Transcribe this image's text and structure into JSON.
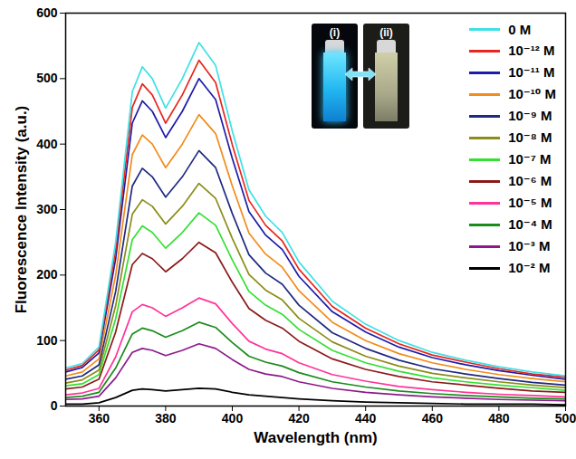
{
  "chart_data": {
    "type": "line",
    "x_label": "Wavelength (nm)",
    "y_label": "Fluorescence Intensity (a.u.)",
    "xlim": [
      350,
      500
    ],
    "xticks": [
      360,
      380,
      400,
      420,
      440,
      460,
      480,
      500
    ],
    "ylim": [
      0,
      600
    ],
    "yticks": [
      0,
      100,
      200,
      300,
      400,
      500,
      600
    ],
    "legend": "upper right",
    "annotations": [
      "(i)",
      "(ii)"
    ],
    "x": [
      350,
      355,
      360,
      365,
      370,
      373,
      376,
      380,
      385,
      390,
      395,
      400,
      405,
      410,
      415,
      420,
      430,
      440,
      450,
      460,
      470,
      480,
      490,
      500
    ],
    "series": [
      {
        "name": "0 M",
        "color": "#3fe0e6",
        "values": [
          58,
          65,
          90,
          250,
          480,
          518,
          500,
          455,
          500,
          555,
          520,
          420,
          330,
          290,
          265,
          220,
          160,
          125,
          100,
          82,
          70,
          60,
          52,
          46
        ]
      },
      {
        "name": "10⁻¹² M",
        "color": "#e8261f",
        "values": [
          55,
          62,
          86,
          238,
          456,
          492,
          475,
          432,
          475,
          528,
          494,
          399,
          314,
          276,
          252,
          209,
          152,
          119,
          95,
          78,
          67,
          57,
          49,
          44
        ]
      },
      {
        "name": "10⁻¹¹ M",
        "color": "#1c1ca8",
        "values": [
          52,
          59,
          81,
          225,
          432,
          466,
          450,
          410,
          450,
          500,
          468,
          378,
          297,
          261,
          239,
          198,
          144,
          113,
          90,
          74,
          63,
          54,
          47,
          41
        ]
      },
      {
        "name": "10⁻¹⁰ M",
        "color": "#f28c1a",
        "values": [
          46,
          52,
          72,
          200,
          384,
          414,
          400,
          364,
          400,
          445,
          416,
          336,
          264,
          232,
          212,
          176,
          128,
          100,
          80,
          66,
          56,
          48,
          42,
          37
        ]
      },
      {
        "name": "10⁻⁹ M",
        "color": "#1f2a80",
        "values": [
          41,
          46,
          63,
          175,
          336,
          363,
          350,
          319,
          350,
          390,
          364,
          294,
          231,
          203,
          186,
          154,
          112,
          88,
          70,
          57,
          49,
          42,
          36,
          32
        ]
      },
      {
        "name": "10⁻⁸ M",
        "color": "#8c8c1a",
        "values": [
          35,
          40,
          55,
          153,
          293,
          315,
          305,
          278,
          305,
          340,
          317,
          256,
          201,
          177,
          162,
          134,
          98,
          76,
          61,
          50,
          43,
          37,
          32,
          28
        ]
      },
      {
        "name": "10⁻⁷ M",
        "color": "#33e033",
        "values": [
          31,
          34,
          48,
          133,
          254,
          275,
          265,
          241,
          265,
          295,
          276,
          223,
          175,
          154,
          140,
          117,
          85,
          66,
          53,
          43,
          37,
          32,
          28,
          24
        ]
      },
      {
        "name": "10⁻⁶ M",
        "color": "#8b1a1a",
        "values": [
          26,
          29,
          41,
          113,
          216,
          233,
          225,
          205,
          225,
          250,
          234,
          189,
          149,
          131,
          119,
          99,
          72,
          56,
          45,
          37,
          32,
          27,
          23,
          21
        ]
      },
      {
        "name": "10⁻⁵ M",
        "color": "#ff3399",
        "values": [
          17,
          20,
          27,
          75,
          144,
          155,
          150,
          137,
          150,
          165,
          156,
          126,
          99,
          87,
          80,
          66,
          48,
          38,
          30,
          25,
          21,
          18,
          16,
          14
        ]
      },
      {
        "name": "10⁻⁴ M",
        "color": "#1a8c1a",
        "values": [
          13,
          15,
          21,
          58,
          110,
          119,
          115,
          105,
          115,
          128,
          120,
          97,
          76,
          67,
          61,
          51,
          37,
          29,
          23,
          19,
          16,
          14,
          12,
          11
        ]
      },
      {
        "name": "10⁻³ M",
        "color": "#8c1a8c",
        "values": [
          10,
          11,
          15,
          43,
          82,
          88,
          85,
          77,
          85,
          95,
          88,
          71,
          56,
          49,
          45,
          37,
          27,
          21,
          17,
          14,
          12,
          10,
          9,
          8
        ]
      },
      {
        "name": "10⁻² M",
        "color": "#000000",
        "values": [
          3,
          3,
          5,
          13,
          24,
          26,
          25,
          23,
          25,
          27,
          26,
          21,
          17,
          15,
          13,
          11,
          8,
          6,
          5,
          4,
          3,
          3,
          3,
          2
        ]
      }
    ]
  }
}
